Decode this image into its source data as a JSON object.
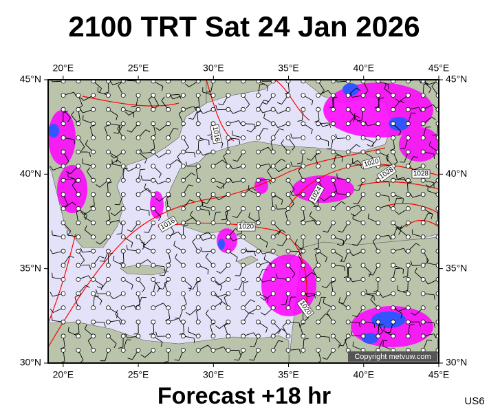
{
  "header": {
    "title": "2100 TRT Sat 24 Jan 2026"
  },
  "map": {
    "lon_labels": [
      {
        "value": 20,
        "label": "20°E"
      },
      {
        "value": 25,
        "label": "25°E"
      },
      {
        "value": 30,
        "label": "30°E"
      },
      {
        "value": 35,
        "label": "35°E"
      },
      {
        "value": 40,
        "label": "40°E"
      },
      {
        "value": 45,
        "label": "45°E"
      }
    ],
    "lat_labels": [
      {
        "value": 30,
        "label": "30°N"
      },
      {
        "value": 35,
        "label": "35°N"
      },
      {
        "value": 40,
        "label": "40°N"
      },
      {
        "value": 45,
        "label": "45°N"
      }
    ],
    "isobar_labels": [
      "1016",
      "1020",
      "1028",
      "1028",
      "1024",
      "1016",
      "1020",
      "1020"
    ],
    "copyright": "Copyright metvuw.com"
  },
  "footer": {
    "forecast": "Forecast +18 hr",
    "code": "US6"
  }
}
